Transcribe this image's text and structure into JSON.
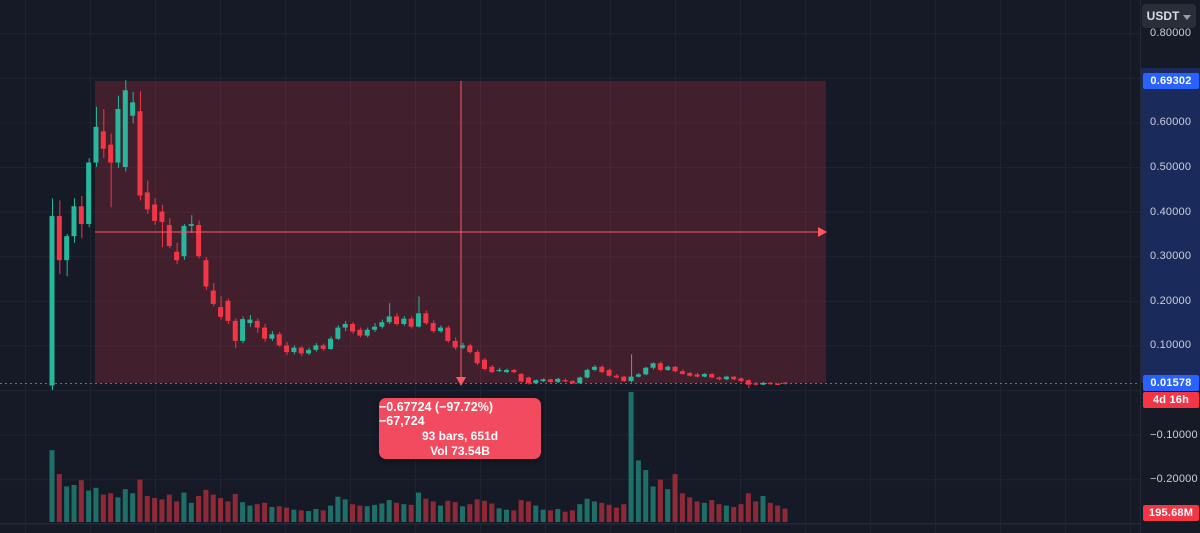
{
  "toolbar": {
    "quote_currency": "USDT"
  },
  "measure_tooltip": {
    "line1": "−0.67724 (−97.72%) −67,724",
    "line2": "93 bars, 651d",
    "line3": "Vol 73.54B"
  },
  "price_axis": {
    "labels": [
      {
        "text": "0.80000",
        "price": 0.8
      },
      {
        "text": "0.60000",
        "price": 0.6
      },
      {
        "text": "0.50000",
        "price": 0.5
      },
      {
        "text": "0.40000",
        "price": 0.4
      },
      {
        "text": "0.30000",
        "price": 0.3
      },
      {
        "text": "0.20000",
        "price": 0.2
      },
      {
        "text": "0.10000",
        "price": 0.1
      },
      {
        "text": "−0.10000",
        "price": -0.1
      },
      {
        "text": "−0.20000",
        "price": -0.2
      }
    ],
    "range_high_badge": {
      "text": "0.69302",
      "price": 0.69302
    },
    "last_price_badge": {
      "text": "0.01578",
      "price": 0.01578
    },
    "countdown_badge": {
      "text": "4d 16h"
    },
    "volume_badge": {
      "text": "195.68M"
    }
  },
  "colors": {
    "background": "#161a27",
    "grid": "#1f2433",
    "candle_up": "#26b79c",
    "candle_down": "#f23645",
    "volume_opacity": 0.55,
    "measure_fill": "rgba(244,56,70,0.2)",
    "measure_line": "#fb5a64",
    "last_price_line": "#f23645",
    "badge_blue": "#2962ff",
    "badge_red": "#f23645",
    "tooltip_bg": "#f24a5e",
    "scale_highlight": "rgba(41,98,255,0.24)"
  },
  "chart_data": {
    "type": "candlestick",
    "quote": "USDT",
    "interval_note": "93 bars = 651d (7d bars)",
    "y_axis_range_visible": [
      -0.32,
      0.84
    ],
    "grid": "on",
    "last_price": 0.01578,
    "measure": {
      "price_start": 0.69302,
      "price_end": 0.01578,
      "change": -0.67724,
      "change_pct": -97.72,
      "bars": 93,
      "duration_days": 651,
      "volume": "73.54B"
    },
    "candles": [
      [
        0.01,
        0.43,
        0.0,
        0.39
      ],
      [
        0.39,
        0.425,
        0.26,
        0.291
      ],
      [
        0.291,
        0.35,
        0.255,
        0.345
      ],
      [
        0.345,
        0.43,
        0.33,
        0.412
      ],
      [
        0.412,
        0.435,
        0.34,
        0.372
      ],
      [
        0.372,
        0.52,
        0.365,
        0.51
      ],
      [
        0.51,
        0.635,
        0.5,
        0.59
      ],
      [
        0.58,
        0.63,
        0.52,
        0.541
      ],
      [
        0.55,
        0.575,
        0.41,
        0.51
      ],
      [
        0.51,
        0.66,
        0.498,
        0.63
      ],
      [
        0.5,
        0.695,
        0.49,
        0.672
      ],
      [
        0.615,
        0.668,
        0.598,
        0.645
      ],
      [
        0.625,
        0.67,
        0.425,
        0.436
      ],
      [
        0.443,
        0.47,
        0.395,
        0.405
      ],
      [
        0.416,
        0.43,
        0.37,
        0.379
      ],
      [
        0.4,
        0.415,
        0.32,
        0.377
      ],
      [
        0.37,
        0.385,
        0.318,
        0.323
      ],
      [
        0.31,
        0.33,
        0.282,
        0.291
      ],
      [
        0.3,
        0.372,
        0.292,
        0.368
      ],
      [
        0.368,
        0.392,
        0.352,
        0.372
      ],
      [
        0.37,
        0.38,
        0.295,
        0.3
      ],
      [
        0.291,
        0.298,
        0.225,
        0.232
      ],
      [
        0.223,
        0.24,
        0.188,
        0.193
      ],
      [
        0.186,
        0.21,
        0.158,
        0.164
      ],
      [
        0.2,
        0.205,
        0.148,
        0.155
      ],
      [
        0.155,
        0.16,
        0.094,
        0.11
      ],
      [
        0.11,
        0.165,
        0.105,
        0.159
      ],
      [
        0.15,
        0.168,
        0.142,
        0.158
      ],
      [
        0.155,
        0.16,
        0.128,
        0.14
      ],
      [
        0.14,
        0.148,
        0.108,
        0.115
      ],
      [
        0.115,
        0.132,
        0.11,
        0.125
      ],
      [
        0.125,
        0.13,
        0.096,
        0.1
      ],
      [
        0.1,
        0.108,
        0.078,
        0.085
      ],
      [
        0.085,
        0.1,
        0.08,
        0.095
      ],
      [
        0.095,
        0.098,
        0.076,
        0.082
      ],
      [
        0.082,
        0.095,
        0.078,
        0.09
      ],
      [
        0.09,
        0.105,
        0.086,
        0.1
      ],
      [
        0.1,
        0.104,
        0.088,
        0.092
      ],
      [
        0.092,
        0.12,
        0.09,
        0.115
      ],
      [
        0.115,
        0.145,
        0.112,
        0.14
      ],
      [
        0.14,
        0.155,
        0.132,
        0.148
      ],
      [
        0.148,
        0.152,
        0.126,
        0.131
      ],
      [
        0.135,
        0.14,
        0.118,
        0.122
      ],
      [
        0.122,
        0.14,
        0.118,
        0.135
      ],
      [
        0.135,
        0.15,
        0.13,
        0.142
      ],
      [
        0.142,
        0.158,
        0.138,
        0.152
      ],
      [
        0.152,
        0.195,
        0.148,
        0.165
      ],
      [
        0.165,
        0.172,
        0.144,
        0.148
      ],
      [
        0.148,
        0.166,
        0.144,
        0.16
      ],
      [
        0.16,
        0.165,
        0.138,
        0.142
      ],
      [
        0.142,
        0.21,
        0.14,
        0.172
      ],
      [
        0.172,
        0.178,
        0.146,
        0.15
      ],
      [
        0.15,
        0.156,
        0.128,
        0.132
      ],
      [
        0.132,
        0.145,
        0.128,
        0.14
      ],
      [
        0.14,
        0.144,
        0.106,
        0.11
      ],
      [
        0.11,
        0.118,
        0.09,
        0.095
      ],
      [
        0.095,
        0.106,
        0.092,
        0.1
      ],
      [
        0.1,
        0.104,
        0.082,
        0.085
      ],
      [
        0.085,
        0.09,
        0.056,
        0.06
      ],
      [
        0.068,
        0.072,
        0.044,
        0.047
      ],
      [
        0.052,
        0.056,
        0.038,
        0.04
      ],
      [
        0.043,
        0.05,
        0.04,
        0.045
      ],
      [
        0.04,
        0.048,
        0.038,
        0.045
      ],
      [
        0.045,
        0.047,
        0.038,
        0.04
      ],
      [
        0.036,
        0.038,
        0.017,
        0.019
      ],
      [
        0.028,
        0.03,
        0.012,
        0.015
      ],
      [
        0.015,
        0.024,
        0.013,
        0.022
      ],
      [
        0.02,
        0.026,
        0.018,
        0.024
      ],
      [
        0.024,
        0.025,
        0.016,
        0.018
      ],
      [
        0.018,
        0.027,
        0.016,
        0.025
      ],
      [
        0.022,
        0.026,
        0.018,
        0.02
      ],
      [
        0.02,
        0.022,
        0.013,
        0.015
      ],
      [
        0.015,
        0.03,
        0.014,
        0.028
      ],
      [
        0.028,
        0.048,
        0.026,
        0.045
      ],
      [
        0.045,
        0.056,
        0.042,
        0.052
      ],
      [
        0.052,
        0.055,
        0.038,
        0.04
      ],
      [
        0.045,
        0.048,
        0.03,
        0.032
      ],
      [
        0.032,
        0.036,
        0.026,
        0.028
      ],
      [
        0.03,
        0.032,
        0.018,
        0.02
      ],
      [
        0.02,
        0.08,
        0.017,
        0.03
      ],
      [
        0.03,
        0.038,
        0.028,
        0.035
      ],
      [
        0.035,
        0.052,
        0.033,
        0.05
      ],
      [
        0.05,
        0.062,
        0.046,
        0.06
      ],
      [
        0.06,
        0.064,
        0.042,
        0.045
      ],
      [
        0.045,
        0.055,
        0.043,
        0.052
      ],
      [
        0.052,
        0.054,
        0.04,
        0.042
      ],
      [
        0.042,
        0.046,
        0.034,
        0.036
      ],
      [
        0.038,
        0.04,
        0.03,
        0.032
      ],
      [
        0.035,
        0.038,
        0.028,
        0.03
      ],
      [
        0.03,
        0.038,
        0.028,
        0.036
      ],
      [
        0.036,
        0.037,
        0.026,
        0.028
      ],
      [
        0.028,
        0.03,
        0.022,
        0.024
      ],
      [
        0.024,
        0.032,
        0.022,
        0.03
      ],
      [
        0.03,
        0.031,
        0.022,
        0.024
      ],
      [
        0.026,
        0.028,
        0.018,
        0.02
      ],
      [
        0.022,
        0.024,
        0.004,
        0.012
      ],
      [
        0.015,
        0.018,
        0.01,
        0.012
      ],
      [
        0.012,
        0.018,
        0.011,
        0.016
      ],
      [
        0.016,
        0.018,
        0.012,
        0.013
      ],
      [
        0.014,
        0.016,
        0.011,
        0.0125
      ],
      [
        0.0165,
        0.018,
        0.012,
        0.0158
      ]
    ],
    "volumes_millions": [
      1050,
      700,
      520,
      540,
      610,
      460,
      500,
      400,
      420,
      360,
      480,
      420,
      620,
      380,
      350,
      330,
      400,
      300,
      430,
      280,
      380,
      470,
      400,
      350,
      300,
      410,
      290,
      240,
      260,
      280,
      220,
      230,
      210,
      180,
      170,
      160,
      190,
      170,
      240,
      370,
      330,
      260,
      240,
      230,
      250,
      270,
      320,
      280,
      260,
      250,
      430,
      340,
      300,
      240,
      310,
      290,
      230,
      260,
      330,
      310,
      270,
      200,
      180,
      170,
      320,
      300,
      240,
      180,
      170,
      190,
      150,
      170,
      260,
      340,
      300,
      280,
      250,
      210,
      260,
      1900,
      900,
      760,
      520,
      620,
      480,
      700,
      420,
      360,
      300,
      280,
      320,
      260,
      240,
      220,
      260,
      420,
      300,
      380,
      280,
      240,
      195.68
    ]
  }
}
